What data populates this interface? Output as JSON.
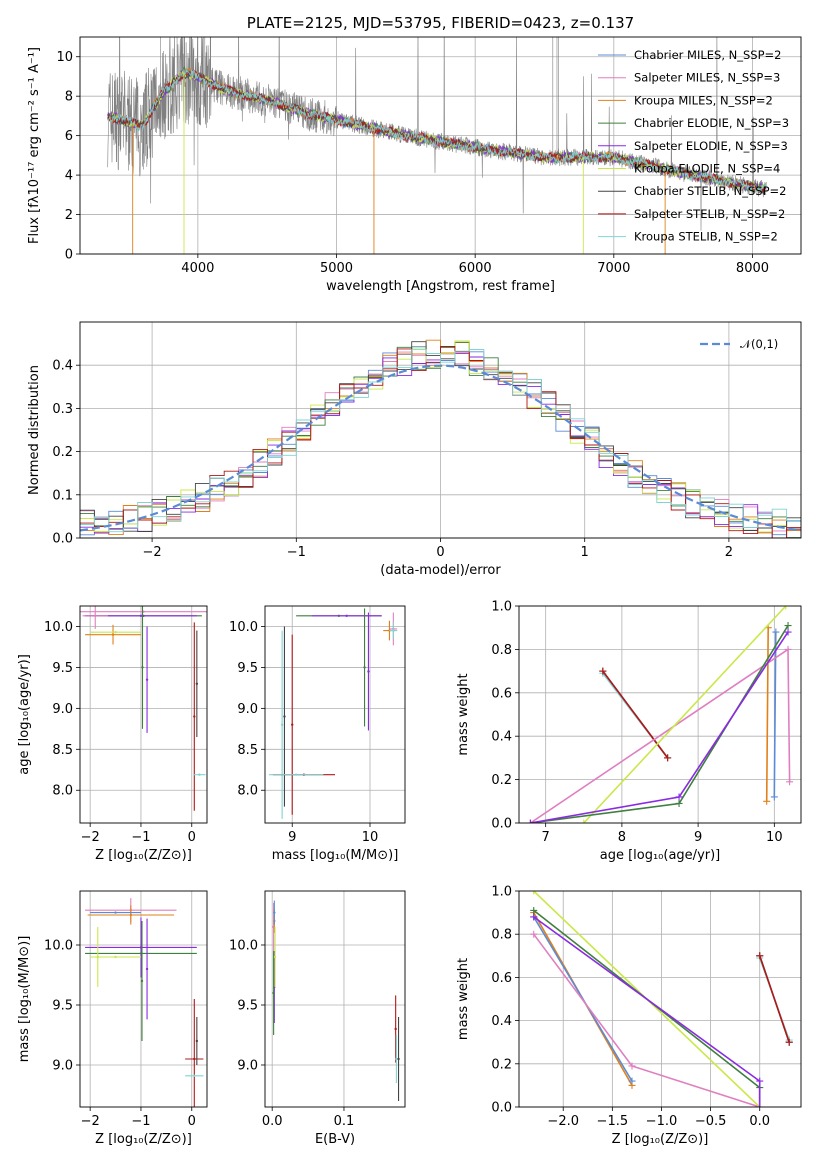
{
  "colors": {
    "chabrier_miles": "#5b8bd6",
    "salpeter_miles": "#e07fc0",
    "kroupa_miles": "#e0801a",
    "chabrier_elodie": "#3f7f3f",
    "salpeter_elodie": "#8a2be2",
    "kroupa_elodie": "#c9e84a",
    "chabrier_stelib": "#444444",
    "salpeter_stelib": "#b01818",
    "kroupa_stelib": "#7fd4d4",
    "data": "#808080"
  },
  "chart_data": [
    {
      "id": "spectrum",
      "type": "line",
      "title": "PLATE=2125, MJD=53795, FIBERID=0423, z=0.137",
      "xlabel": "wavelength [Angstrom, rest frame]",
      "ylabel": "Flux [fλ10⁻¹⁷ erg cm⁻² s⁻¹ A⁻¹]",
      "xlim": [
        3150,
        8350
      ],
      "ylim": [
        0,
        11
      ],
      "xticks": [
        "4000",
        "5000",
        "6000",
        "7000",
        "8000"
      ],
      "yticks": [
        "0",
        "2",
        "4",
        "6",
        "8",
        "10"
      ],
      "legend_position": "top-right",
      "continuum": {
        "x": [
          3350,
          3500,
          3600,
          3750,
          3900,
          4000,
          4200,
          4500,
          4800,
          5000,
          5500,
          6000,
          6500,
          7000,
          7500,
          8000,
          8100
        ],
        "y": [
          7.0,
          6.7,
          6.5,
          8.2,
          9.2,
          9.0,
          8.3,
          7.8,
          7.1,
          6.8,
          6.0,
          5.4,
          4.9,
          4.9,
          4.1,
          3.4,
          3.3
        ]
      },
      "series": [
        {
          "name": "Chabrier MILES, N_SSP=2",
          "color_key": "chabrier_miles"
        },
        {
          "name": "Salpeter MILES, N_SSP=3",
          "color_key": "salpeter_miles"
        },
        {
          "name": "Kroupa MILES, N_SSP=2",
          "color_key": "kroupa_miles"
        },
        {
          "name": "Chabrier ELODIE, N_SSP=3",
          "color_key": "chabrier_elodie"
        },
        {
          "name": "Salpeter ELODIE, N_SSP=3",
          "color_key": "salpeter_elodie"
        },
        {
          "name": "Kroupa ELODIE, N_SSP=4",
          "color_key": "kroupa_elodie"
        },
        {
          "name": "Chabrier STELIB, N_SSP=2",
          "color_key": "chabrier_stelib"
        },
        {
          "name": "Salpeter STELIB, N_SSP=2",
          "color_key": "salpeter_stelib"
        },
        {
          "name": "Kroupa STELIB, N_SSP=2",
          "color_key": "kroupa_stelib"
        }
      ]
    },
    {
      "id": "residuals",
      "type": "line",
      "xlabel": "(data-model)/error",
      "ylabel": "Normed distribution",
      "xlim": [
        -2.5,
        2.5
      ],
      "ylim": [
        0,
        0.5
      ],
      "xticks": [
        "−2",
        "−1",
        "0",
        "1",
        "2"
      ],
      "yticks": [
        "0.0",
        "0.1",
        "0.2",
        "0.3",
        "0.4"
      ],
      "legend_label": "𝒩(0,1)",
      "legend_position": "top-right",
      "gaussian": {
        "mean": 0,
        "sigma": 1
      }
    },
    {
      "id": "age_vs_z",
      "type": "scatter",
      "xlabel": "Z [log₁₀(Z/Z⊙)]",
      "ylabel": "age  [log₁₀(age/yr)]",
      "xlim": [
        -2.2,
        0.3
      ],
      "ylim": [
        7.6,
        10.25
      ],
      "xticks": [
        "−2",
        "−1",
        "0"
      ],
      "yticks": [
        "8.0",
        "8.5",
        "9.0",
        "9.5",
        "10.0"
      ],
      "points": [
        {
          "c": "salpeter_miles",
          "x": -0.95,
          "y": 10.18,
          "xe": 1.25,
          "ye": 0.0
        },
        {
          "c": "kroupa_miles",
          "x": -1.55,
          "y": 9.9,
          "xe": 0.55,
          "ye": 0.12
        },
        {
          "c": "chabrier_elodie",
          "x": -0.95,
          "y": 10.13,
          "xe": 1.15,
          "ye": 0.0
        },
        {
          "c": "salpeter_elodie",
          "x": -1.0,
          "y": 10.13,
          "xe": 1.1,
          "ye": 0.0
        },
        {
          "c": "kroupa_elodie",
          "x": -1.5,
          "y": 9.93,
          "xe": 0.5,
          "ye": 0.0
        },
        {
          "c": "chabrier_elodie",
          "x": -0.97,
          "y": 9.5,
          "xe": 0.0,
          "ye": 0.75
        },
        {
          "c": "salpeter_elodie",
          "x": -0.88,
          "y": 9.35,
          "xe": 0.0,
          "ye": 0.65
        },
        {
          "c": "chabrier_stelib",
          "x": 0.1,
          "y": 9.3,
          "xe": 0.0,
          "ye": 0.65
        },
        {
          "c": "salpeter_stelib",
          "x": 0.05,
          "y": 8.9,
          "xe": 0.0,
          "ye": 1.15
        },
        {
          "c": "kroupa_stelib",
          "x": 0.15,
          "y": 8.19,
          "xe": 0.12,
          "ye": 0.0
        },
        {
          "c": "salpeter_miles",
          "x": -1.9,
          "y": 10.13,
          "xe": 0.25,
          "ye": 0.16
        }
      ]
    },
    {
      "id": "age_vs_mass",
      "type": "scatter",
      "xlabel": "mass [log₁₀(M/M⊙)]",
      "ylabel": "",
      "xlim": [
        8.65,
        10.45
      ],
      "ylim": [
        7.6,
        10.25
      ],
      "xticks": [
        "9",
        "10"
      ],
      "yticks": [
        "8.0",
        "8.5",
        "9.0",
        "9.5",
        "10.0"
      ],
      "points": [
        {
          "c": "chabrier_elodie",
          "x": 9.6,
          "y": 10.13,
          "xe": 0.55,
          "ye": 0.0
        },
        {
          "c": "salpeter_elodie",
          "x": 9.7,
          "y": 10.13,
          "xe": 0.45,
          "ye": 0.0
        },
        {
          "c": "kroupa_miles",
          "x": 10.25,
          "y": 9.95,
          "xe": 0.08,
          "ye": 0.12
        },
        {
          "c": "salpeter_miles",
          "x": 10.3,
          "y": 9.97,
          "xe": 0.05,
          "ye": 0.2
        },
        {
          "c": "kroupa_stelib",
          "x": 10.3,
          "y": 9.95,
          "xe": 0.05,
          "ye": 0.1
        },
        {
          "c": "chabrier_elodie",
          "x": 9.93,
          "y": 9.5,
          "xe": 0.0,
          "ye": 0.72
        },
        {
          "c": "salpeter_elodie",
          "x": 9.98,
          "y": 9.45,
          "xe": 0.0,
          "ye": 0.72
        },
        {
          "c": "chabrier_stelib",
          "x": 8.9,
          "y": 8.9,
          "xe": 0.0,
          "ye": 1.1
        },
        {
          "c": "kroupa_stelib",
          "x": 8.87,
          "y": 8.8,
          "xe": 0.0,
          "ye": 1.15
        },
        {
          "c": "salpeter_stelib",
          "x": 9.0,
          "y": 8.8,
          "xe": 0.0,
          "ye": 1.1
        },
        {
          "c": "salpeter_stelib",
          "x": 9.15,
          "y": 8.19,
          "xe": 0.4,
          "ye": 0.0
        },
        {
          "c": "kroupa_stelib",
          "x": 9.05,
          "y": 8.19,
          "xe": 0.35,
          "ye": 0.0
        }
      ]
    },
    {
      "id": "massweight_vs_age",
      "type": "line",
      "xlabel": "age  [log₁₀(age/yr)]",
      "ylabel": "mass weight",
      "xlim": [
        6.65,
        10.35
      ],
      "ylim": [
        0,
        1.0
      ],
      "xticks": [
        "7",
        "8",
        "9",
        "10"
      ],
      "yticks": [
        "0.0",
        "0.2",
        "0.4",
        "0.6",
        "0.8",
        "1.0"
      ],
      "series": [
        {
          "c": "chabrier_stelib",
          "x": [
            7.75,
            8.6
          ],
          "y": [
            0.7,
            0.3
          ]
        },
        {
          "c": "kroupa_stelib",
          "x": [
            7.75,
            8.6
          ],
          "y": [
            0.69,
            0.3
          ]
        },
        {
          "c": "salpeter_stelib",
          "x": [
            7.75,
            8.6
          ],
          "y": [
            0.7,
            0.3
          ]
        },
        {
          "c": "kroupa_miles",
          "x": [
            9.9,
            9.92
          ],
          "y": [
            0.1,
            0.9
          ]
        },
        {
          "c": "chabrier_miles",
          "x": [
            10.0,
            10.02
          ],
          "y": [
            0.12,
            0.88
          ]
        },
        {
          "c": "salpeter_miles",
          "x": [
            6.8,
            10.18,
            10.2
          ],
          "y": [
            0.0,
            0.8,
            0.19
          ]
        },
        {
          "c": "kroupa_elodie",
          "x": [
            7.5,
            10.15
          ],
          "y": [
            0.0,
            1.0
          ]
        },
        {
          "c": "chabrier_elodie",
          "x": [
            6.8,
            8.75,
            10.18
          ],
          "y": [
            0.0,
            0.09,
            0.91
          ]
        },
        {
          "c": "salpeter_elodie",
          "x": [
            6.8,
            8.75,
            10.18
          ],
          "y": [
            0.0,
            0.12,
            0.88
          ]
        }
      ]
    },
    {
      "id": "mass_vs_z",
      "type": "scatter",
      "xlabel": "Z [log₁₀(Z/Z⊙)]",
      "ylabel": "mass [log₁₀(M/M⊙)]",
      "xlim": [
        -2.2,
        0.3
      ],
      "ylim": [
        8.65,
        10.45
      ],
      "xticks": [
        "−2",
        "−1",
        "0"
      ],
      "yticks": [
        "9.0",
        "9.5",
        "10.0"
      ],
      "points": [
        {
          "c": "salpeter_miles",
          "x": -1.2,
          "y": 10.29,
          "xe": 0.9,
          "ye": 0.1
        },
        {
          "c": "kroupa_miles",
          "x": -1.2,
          "y": 10.25,
          "xe": 0.85,
          "ye": 0.08
        },
        {
          "c": "chabrier_miles",
          "x": -1.5,
          "y": 10.27,
          "xe": 0.5,
          "ye": 0.0
        },
        {
          "c": "salpeter_elodie",
          "x": -1.0,
          "y": 9.98,
          "xe": 1.1,
          "ye": 0.25
        },
        {
          "c": "chabrier_elodie",
          "x": -1.0,
          "y": 9.93,
          "xe": 1.1,
          "ye": 0.0
        },
        {
          "c": "kroupa_elodie",
          "x": -1.5,
          "y": 9.9,
          "xe": 0.5,
          "ye": 0.0
        },
        {
          "c": "kroupa_elodie",
          "x": -1.85,
          "y": 9.9,
          "xe": 0.0,
          "ye": 0.25
        },
        {
          "c": "chabrier_elodie",
          "x": -0.98,
          "y": 9.7,
          "xe": 0.0,
          "ye": 0.5
        },
        {
          "c": "salpeter_elodie",
          "x": -0.88,
          "y": 9.8,
          "xe": 0.0,
          "ye": 0.42
        },
        {
          "c": "salpeter_stelib",
          "x": 0.05,
          "y": 9.05,
          "xe": 0.18,
          "ye": 0.5
        },
        {
          "c": "kroupa_stelib",
          "x": 0.05,
          "y": 8.91,
          "xe": 0.18,
          "ye": 0.0
        },
        {
          "c": "chabrier_stelib",
          "x": 0.1,
          "y": 9.2,
          "xe": 0.0,
          "ye": 0.2
        }
      ]
    },
    {
      "id": "mass_vs_ebv",
      "type": "scatter",
      "xlabel": "E(B-V)",
      "ylabel": "",
      "xlim": [
        -0.01,
        0.185
      ],
      "ylim": [
        8.65,
        10.45
      ],
      "xticks": [
        "0.0",
        "0.1"
      ],
      "yticks": [
        "9.0",
        "9.5",
        "10.0"
      ],
      "points": [
        {
          "c": "salpeter_miles",
          "x": 0.002,
          "y": 10.15,
          "xe": 0.0,
          "ye": 0.2
        },
        {
          "c": "kroupa_miles",
          "x": 0.003,
          "y": 10.2,
          "xe": 0.0,
          "ye": 0.1
        },
        {
          "c": "chabrier_miles",
          "x": 0.003,
          "y": 10.27,
          "xe": 0.0,
          "ye": 0.1
        },
        {
          "c": "salpeter_elodie",
          "x": 0.003,
          "y": 9.65,
          "xe": 0.0,
          "ye": 0.3
        },
        {
          "c": "chabrier_elodie",
          "x": 0.002,
          "y": 9.6,
          "xe": 0.0,
          "ye": 0.35
        },
        {
          "c": "kroupa_elodie",
          "x": 0.004,
          "y": 9.9,
          "xe": 0.0,
          "ye": 0.25
        },
        {
          "c": "salpeter_stelib",
          "x": 0.172,
          "y": 9.3,
          "xe": 0.0,
          "ye": 0.28
        },
        {
          "c": "chabrier_stelib",
          "x": 0.176,
          "y": 9.05,
          "xe": 0.0,
          "ye": 0.35
        },
        {
          "c": "kroupa_stelib",
          "x": 0.173,
          "y": 9.05,
          "xe": 0.0,
          "ye": 0.2
        }
      ]
    },
    {
      "id": "massweight_vs_z",
      "type": "line",
      "xlabel": "Z [log₁₀(Z/Z⊙)]",
      "ylabel": "mass weight",
      "xlim": [
        -2.45,
        0.42
      ],
      "ylim": [
        0,
        1.0
      ],
      "xticks": [
        "−2.0",
        "−1.5",
        "−1.0",
        "−0.5",
        "0.0"
      ],
      "yticks": [
        "0.0",
        "0.2",
        "0.4",
        "0.6",
        "0.8",
        "1.0"
      ],
      "series": [
        {
          "c": "chabrier_stelib",
          "x": [
            0.0,
            0.3
          ],
          "y": [
            0.7,
            0.3
          ]
        },
        {
          "c": "kroupa_stelib",
          "x": [
            0.0,
            0.3
          ],
          "y": [
            0.69,
            0.31
          ]
        },
        {
          "c": "salpeter_stelib",
          "x": [
            0.0,
            0.3
          ],
          "y": [
            0.7,
            0.3
          ]
        },
        {
          "c": "kroupa_miles",
          "x": [
            -2.3,
            -1.3
          ],
          "y": [
            0.9,
            0.1
          ]
        },
        {
          "c": "chabrier_miles",
          "x": [
            -2.3,
            -1.3
          ],
          "y": [
            0.88,
            0.12
          ]
        },
        {
          "c": "salpeter_miles",
          "x": [
            -2.3,
            -1.3,
            0.0
          ],
          "y": [
            0.8,
            0.19,
            0.0
          ]
        },
        {
          "c": "kroupa_elodie",
          "x": [
            -2.3,
            0.0
          ],
          "y": [
            1.0,
            0.0
          ]
        },
        {
          "c": "chabrier_elodie",
          "x": [
            -2.3,
            0.0,
            0.0
          ],
          "y": [
            0.91,
            0.09,
            0.0
          ]
        },
        {
          "c": "salpeter_elodie",
          "x": [
            -2.3,
            0.0,
            0.0
          ],
          "y": [
            0.88,
            0.12,
            0.0
          ]
        }
      ]
    }
  ]
}
